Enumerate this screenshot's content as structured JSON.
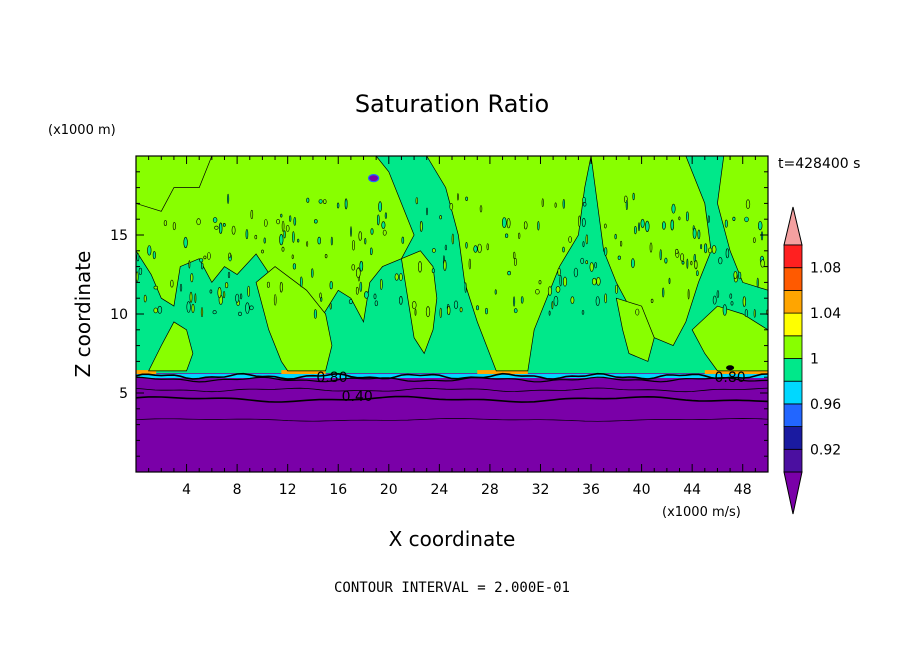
{
  "chart_data": {
    "type": "heatmap",
    "title": "Saturation Ratio",
    "xlabel": "X coordinate",
    "ylabel": "Z coordinate",
    "x_units": "(x1000 m/s)",
    "y_units": "(x1000 m)",
    "time_label": "t=428400 s",
    "footer": "CONTOUR INTERVAL = 2.000E-01",
    "xlim": [
      0,
      50
    ],
    "ylim": [
      0,
      20
    ],
    "x_ticks": [
      4,
      8,
      12,
      16,
      20,
      24,
      28,
      32,
      36,
      40,
      44,
      48
    ],
    "y_ticks": [
      5,
      10,
      15
    ],
    "contour_labels": [
      {
        "text": "0.80",
        "x": 15.5,
        "y": 5.7
      },
      {
        "text": "0.80",
        "x": 47.0,
        "y": 5.7
      },
      {
        "text": "0.40",
        "x": 17.5,
        "y": 4.5
      }
    ],
    "colorbar": {
      "levels": [
        0.9,
        0.92,
        0.94,
        0.96,
        0.98,
        1.0,
        1.02,
        1.04,
        1.06,
        1.08,
        1.1
      ],
      "labels": [
        "0.92",
        "0.96",
        "1",
        "1.04",
        "1.08"
      ],
      "colors": [
        "#4b0fa0",
        "#1a1aa0",
        "#2266ff",
        "#00d8ff",
        "#00e88a",
        "#88ff00",
        "#ffff00",
        "#ffa500",
        "#ff5a00",
        "#ff2020"
      ],
      "under_color": "#7a00a8",
      "over_color": "#f4a0a0"
    },
    "regions": {
      "lower_value": "<0.90",
      "mid_value": "0.98-1.00",
      "upper_value": "1.00-1.02"
    }
  }
}
